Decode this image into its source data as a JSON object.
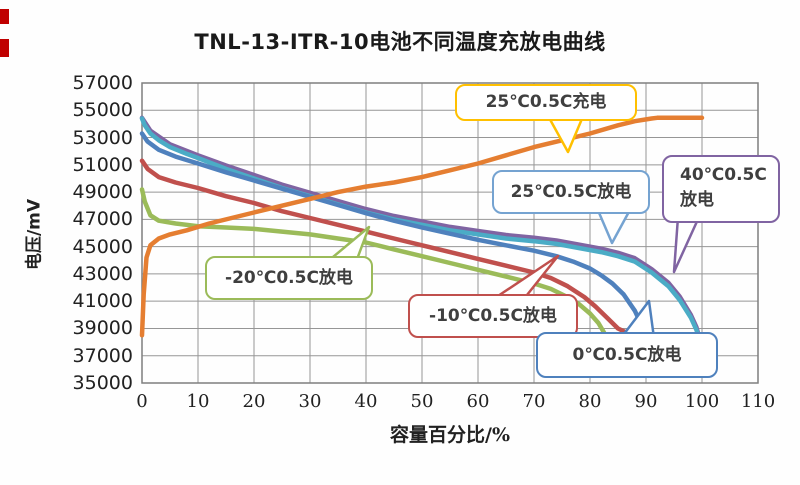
{
  "title": "TNL-13-ITR-10电池不同温度充放电曲线",
  "y_axis": {
    "label": "电压/mV",
    "ticks": [
      57000,
      55000,
      53000,
      51000,
      49000,
      47000,
      45000,
      43000,
      41000,
      39000,
      37000,
      35000
    ]
  },
  "x_axis": {
    "label": "容量百分比/%",
    "ticks": [
      0,
      10,
      20,
      30,
      40,
      50,
      60,
      70,
      80,
      90,
      100,
      110
    ]
  },
  "callouts": [
    {
      "id": "charge-25",
      "label": "25℃0.5C充电",
      "color": "#FFC000"
    },
    {
      "id": "discharge-25",
      "label": "25℃0.5C放电",
      "color": "#75A3D1"
    },
    {
      "id": "discharge-40",
      "lines": [
        "40℃0.5C",
        "放电"
      ],
      "color": "#8064A2"
    },
    {
      "id": "discharge-m20",
      "label": "-20℃0.5C放电",
      "color": "#9BBB59"
    },
    {
      "id": "discharge-m10",
      "label": "-10℃0.5C放电",
      "color": "#C0504D"
    },
    {
      "id": "discharge-0",
      "label": "0℃0.5C放电",
      "color": "#4F81BD"
    }
  ],
  "chart_data": {
    "type": "line",
    "title": "TNL-13-ITR-10电池不同温度充放电曲线",
    "xlabel": "容量百分比/%",
    "ylabel": "电压/mV",
    "xlim": [
      0,
      110
    ],
    "ylim": [
      35000,
      57000
    ],
    "grid": true,
    "legend_position": "callouts-on-plot",
    "series": [
      {
        "name": "40℃0.5C放电",
        "color": "#8064A2",
        "points": [
          [
            0,
            54450
          ],
          [
            1.5,
            53500
          ],
          [
            5,
            52500
          ],
          [
            10,
            51700
          ],
          [
            15,
            50950
          ],
          [
            20,
            50250
          ],
          [
            25,
            49550
          ],
          [
            30,
            48950
          ],
          [
            35,
            48350
          ],
          [
            40,
            47750
          ],
          [
            45,
            47250
          ],
          [
            50,
            46850
          ],
          [
            55,
            46450
          ],
          [
            60,
            46150
          ],
          [
            65,
            45850
          ],
          [
            70,
            45650
          ],
          [
            74,
            45450
          ],
          [
            78,
            45150
          ],
          [
            82,
            44850
          ],
          [
            85,
            44550
          ],
          [
            88,
            44150
          ],
          [
            91,
            43350
          ],
          [
            94,
            42350
          ],
          [
            96,
            41350
          ],
          [
            98,
            40000
          ],
          [
            99,
            39100
          ],
          [
            100,
            37600
          ]
        ]
      },
      {
        "name": "25℃0.5C放电",
        "color": "#4BACC6",
        "points": [
          [
            0,
            54400
          ],
          [
            0.5,
            53900
          ],
          [
            1.5,
            53300
          ],
          [
            3,
            52800
          ],
          [
            5,
            52300
          ],
          [
            8,
            51800
          ],
          [
            10,
            51500
          ],
          [
            15,
            50700
          ],
          [
            20,
            50000
          ],
          [
            25,
            49300
          ],
          [
            30,
            48700
          ],
          [
            35,
            48100
          ],
          [
            40,
            47500
          ],
          [
            45,
            47000
          ],
          [
            50,
            46600
          ],
          [
            55,
            46200
          ],
          [
            60,
            45900
          ],
          [
            65,
            45600
          ],
          [
            70,
            45400
          ],
          [
            74,
            45200
          ],
          [
            78,
            44900
          ],
          [
            82,
            44600
          ],
          [
            85,
            44300
          ],
          [
            88,
            43900
          ],
          [
            91,
            43100
          ],
          [
            94,
            42100
          ],
          [
            96,
            41100
          ],
          [
            98,
            39800
          ],
          [
            99,
            38900
          ],
          [
            100,
            37700
          ]
        ]
      },
      {
        "name": "-20℃0.5C放电",
        "color": "#9BBB59",
        "points": [
          [
            0,
            49200
          ],
          [
            0.5,
            48300
          ],
          [
            1.5,
            47300
          ],
          [
            3,
            46900
          ],
          [
            6,
            46700
          ],
          [
            10,
            46500
          ],
          [
            15,
            46400
          ],
          [
            20,
            46300
          ],
          [
            25,
            46100
          ],
          [
            30,
            45900
          ],
          [
            35,
            45600
          ],
          [
            40,
            45300
          ],
          [
            45,
            44800
          ],
          [
            50,
            44300
          ],
          [
            55,
            43800
          ],
          [
            60,
            43300
          ],
          [
            65,
            42800
          ],
          [
            70,
            42300
          ],
          [
            73,
            41900
          ],
          [
            76,
            41300
          ],
          [
            78,
            40800
          ],
          [
            80,
            40100
          ],
          [
            81.5,
            39400
          ],
          [
            82.5,
            38700
          ]
        ]
      },
      {
        "name": "-10℃0.5C放电",
        "color": "#C0504D",
        "points": [
          [
            0,
            51300
          ],
          [
            1,
            50700
          ],
          [
            3,
            50100
          ],
          [
            6,
            49700
          ],
          [
            10,
            49300
          ],
          [
            15,
            48700
          ],
          [
            20,
            48200
          ],
          [
            25,
            47600
          ],
          [
            30,
            47100
          ],
          [
            35,
            46600
          ],
          [
            40,
            46100
          ],
          [
            45,
            45600
          ],
          [
            50,
            45100
          ],
          [
            55,
            44600
          ],
          [
            60,
            44100
          ],
          [
            65,
            43600
          ],
          [
            70,
            43100
          ],
          [
            73,
            42700
          ],
          [
            76,
            42100
          ],
          [
            79,
            41300
          ],
          [
            81,
            40600
          ],
          [
            83,
            39800
          ],
          [
            85,
            39000
          ],
          [
            86.5,
            38700
          ]
        ]
      },
      {
        "name": "0℃0.5C放电",
        "color": "#4F81BD",
        "points": [
          [
            0,
            53300
          ],
          [
            1,
            52700
          ],
          [
            3,
            52100
          ],
          [
            6,
            51600
          ],
          [
            10,
            51100
          ],
          [
            15,
            50450
          ],
          [
            20,
            49850
          ],
          [
            25,
            49250
          ],
          [
            30,
            48650
          ],
          [
            35,
            48050
          ],
          [
            40,
            47450
          ],
          [
            45,
            46900
          ],
          [
            50,
            46400
          ],
          [
            55,
            45950
          ],
          [
            60,
            45500
          ],
          [
            65,
            45100
          ],
          [
            70,
            44700
          ],
          [
            74,
            44300
          ],
          [
            77,
            43900
          ],
          [
            80,
            43400
          ],
          [
            82,
            42900
          ],
          [
            84,
            42300
          ],
          [
            86,
            41500
          ],
          [
            88,
            40300
          ],
          [
            89.5,
            39000
          ],
          [
            90.5,
            37600
          ]
        ]
      },
      {
        "name": "25℃0.5C充电",
        "color": "#E57E31",
        "points": [
          [
            0,
            38500
          ],
          [
            0.3,
            41500
          ],
          [
            0.8,
            44200
          ],
          [
            1.5,
            45100
          ],
          [
            3,
            45600
          ],
          [
            5,
            45900
          ],
          [
            8,
            46200
          ],
          [
            12,
            46700
          ],
          [
            16,
            47100
          ],
          [
            20,
            47500
          ],
          [
            25,
            48000
          ],
          [
            30,
            48500
          ],
          [
            35,
            49000
          ],
          [
            40,
            49400
          ],
          [
            45,
            49700
          ],
          [
            50,
            50100
          ],
          [
            55,
            50600
          ],
          [
            60,
            51100
          ],
          [
            65,
            51700
          ],
          [
            70,
            52300
          ],
          [
            75,
            52800
          ],
          [
            80,
            53300
          ],
          [
            85,
            53900
          ],
          [
            88,
            54200
          ],
          [
            91,
            54400
          ],
          [
            92,
            54450
          ],
          [
            100,
            54450
          ]
        ]
      }
    ]
  }
}
